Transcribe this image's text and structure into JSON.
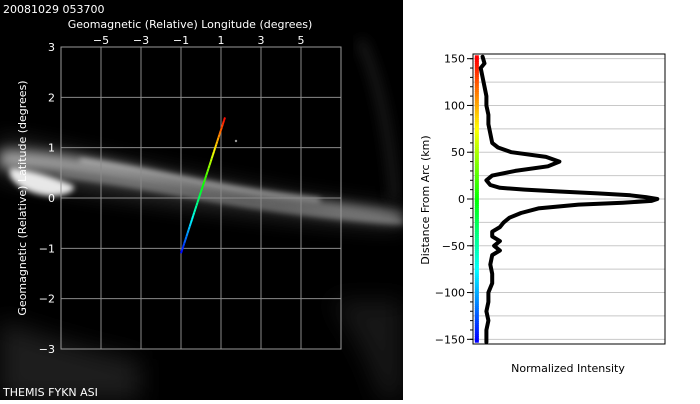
{
  "timestamp": "20081029 053700",
  "footer": "THEMIS FYKN ASI",
  "chart_data": [
    {
      "type": "scatter",
      "title": "",
      "xlabel": "Geomagnetic (Relative) Longitude (degrees)",
      "ylabel": "Geomagnetic (Relative) Latitude (degrees)",
      "xlim": [
        -7,
        7
      ],
      "ylim": [
        -3,
        3
      ],
      "x_ticks": [
        -5,
        -3,
        -1,
        1,
        3,
        5
      ],
      "y_ticks": [
        3,
        2,
        1,
        0,
        -1,
        -2,
        -3
      ],
      "x_tick_labels": [
        "−5",
        "−3",
        "−1",
        "1",
        "3",
        "5"
      ],
      "y_tick_labels": [
        "3",
        "2",
        "1",
        "0",
        "−1",
        "−2",
        "−3"
      ],
      "grid": true,
      "background": "all-sky imager image (grayscale)",
      "series": [
        {
          "name": "",
          "color_scale": "rainbow (blue at bottom to red at top)",
          "x": [
            -1.0,
            1.2
          ],
          "y": [
            -1.1,
            1.6
          ]
        }
      ]
    },
    {
      "type": "line",
      "title": "",
      "xlabel": "Normalized Intensity",
      "ylabel": "Distance From Arc (km)",
      "ylim": [
        -155,
        155
      ],
      "y_ticks": [
        150,
        100,
        50,
        0,
        -50,
        -100,
        -150
      ],
      "y_tick_labels": [
        "150",
        "100",
        "50",
        "0",
        "−50",
        "−100",
        "−150"
      ],
      "xlim": [
        0,
        1
      ],
      "grid": true,
      "series": [
        {
          "name": "",
          "color": "#000000",
          "distance_km": [
            152,
            145,
            140,
            130,
            120,
            110,
            100,
            90,
            80,
            70,
            60,
            55,
            50,
            45,
            40,
            35,
            30,
            25,
            20,
            15,
            12,
            10,
            8,
            6,
            4,
            2,
            0,
            -2,
            -4,
            -6,
            -10,
            -15,
            -20,
            -25,
            -30,
            -35,
            -40,
            -45,
            -50,
            -55,
            -60,
            -70,
            -80,
            -90,
            -100,
            -110,
            -120,
            -130,
            -140,
            -150,
            -153
          ],
          "intensity": [
            0.05,
            0.06,
            0.04,
            0.05,
            0.06,
            0.07,
            0.07,
            0.08,
            0.08,
            0.09,
            0.1,
            0.13,
            0.2,
            0.38,
            0.45,
            0.39,
            0.22,
            0.1,
            0.07,
            0.09,
            0.14,
            0.27,
            0.45,
            0.65,
            0.82,
            0.9,
            0.96,
            0.93,
            0.78,
            0.55,
            0.34,
            0.25,
            0.19,
            0.16,
            0.14,
            0.1,
            0.1,
            0.14,
            0.11,
            0.14,
            0.1,
            0.09,
            0.1,
            0.1,
            0.08,
            0.08,
            0.07,
            0.08,
            0.07,
            0.07,
            0.07
          ]
        }
      ],
      "marker_color_scale": "rainbow (red at +150 km, green at 0 km, blue at -150 km)"
    }
  ]
}
